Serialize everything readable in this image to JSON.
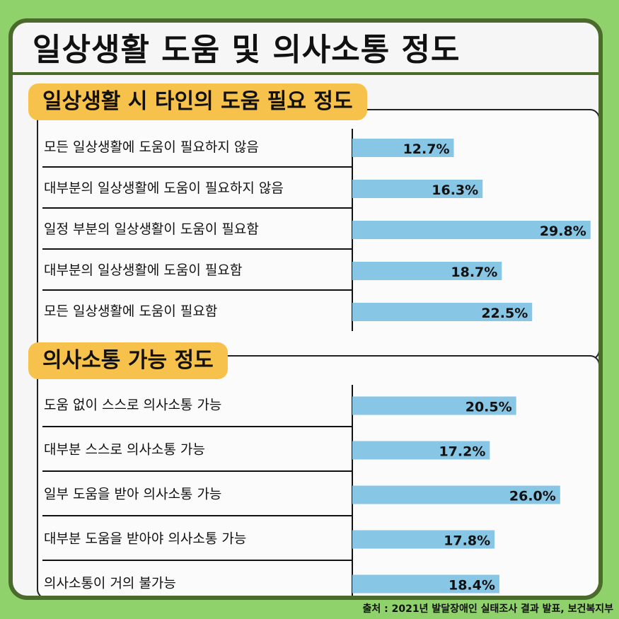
{
  "title": "일상생활 도움 및 의사소통 정도",
  "source": "출처 : 2021년 발달장애인 실태조사 결과 발표, 보건복지부",
  "colors": {
    "bar": "#87c6e5",
    "tag": "#f7c24b",
    "frame": "#4a6b2c",
    "background": "#8fd16a"
  },
  "chart_data": [
    {
      "type": "bar",
      "title": "일상생활 시 타인의 도움 필요 정도",
      "orientation": "horizontal",
      "categories": [
        "모든 일상생활에 도움이 필요하지 않음",
        "대부분의 일상생활에 도움이 필요하지 않음",
        "일정 부분의 일상생활이 도움이 필요함",
        "대부분의 일상생활에 도움이 필요함",
        "모든 일상생활에 도움이 필요함"
      ],
      "values": [
        12.7,
        16.3,
        29.8,
        18.7,
        22.5
      ],
      "value_labels": [
        "12.7%",
        "16.3%",
        "29.8%",
        "18.7%",
        "22.5%"
      ],
      "xlim": [
        0,
        30
      ],
      "grid": false
    },
    {
      "type": "bar",
      "title": "의사소통 가능 정도",
      "orientation": "horizontal",
      "categories": [
        "도움 없이 스스로 의사소통 가능",
        "대부분 스스로 의사소통 가능",
        "일부 도움을 받아 의사소통 가능",
        "대부분 도움을 받아야 의사소통 가능",
        "의사소통이 거의 불가능"
      ],
      "values": [
        20.5,
        17.2,
        26.0,
        17.8,
        18.4
      ],
      "value_labels": [
        "20.5%",
        "17.2%",
        "26.0%",
        "17.8%",
        "18.4%"
      ],
      "xlim": [
        0,
        30
      ],
      "grid": false
    }
  ]
}
